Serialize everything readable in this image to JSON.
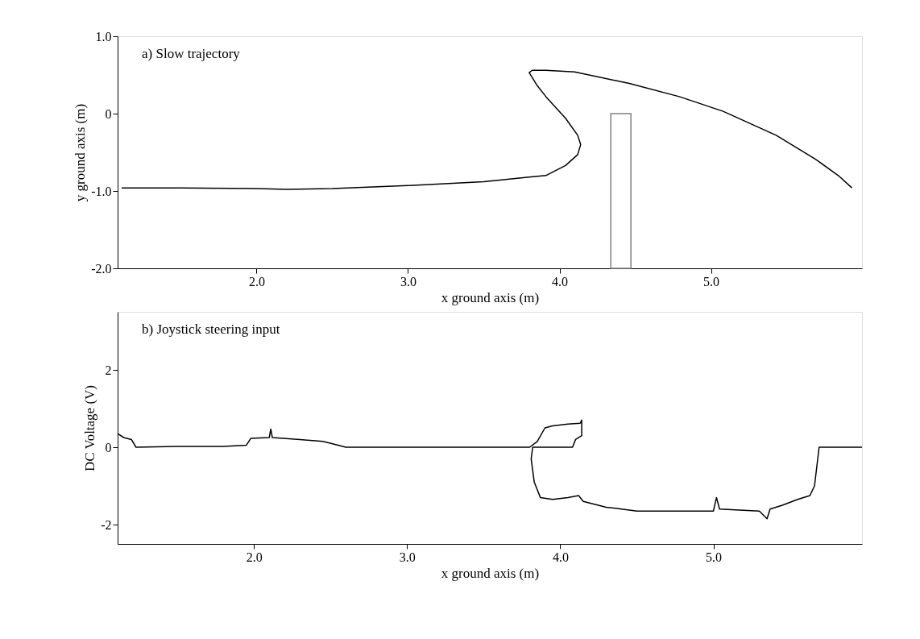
{
  "chart_data": [
    {
      "type": "line",
      "xlabel": "x ground axis (m)",
      "ylabel": "y ground axis (m)",
      "annotations": [
        "a) Slow trajectory"
      ],
      "xlim": [
        1.11,
        5.97
      ],
      "xticks": [
        {
          "value": 2,
          "label": "2.0"
        },
        {
          "value": 3,
          "label": "3.0"
        },
        {
          "value": 4,
          "label": "4.0"
        },
        {
          "value": 5,
          "label": "5.0"
        }
      ],
      "ylim": [
        -2.0,
        1.0
      ],
      "yticks": [
        {
          "value": 1,
          "label": "1.0"
        },
        0,
        {
          "value": -1,
          "label": "-1.0"
        },
        {
          "value": -2,
          "label": "-2.0"
        }
      ],
      "grid": false,
      "legend": false,
      "line_style": "solid",
      "series": [
        {
          "color": "#000000",
          "x": [
            1.11,
            1.5,
            2.0,
            2.2,
            2.5,
            3.0,
            3.5,
            3.8,
            3.91,
            4.04,
            4.12,
            4.14,
            4.12,
            4.04,
            3.91,
            3.85,
            3.8,
            3.82,
            3.91,
            4.1,
            4.46,
            4.79,
            5.08,
            5.43,
            5.69,
            5.84,
            5.93
          ],
          "values": [
            -0.96,
            -0.96,
            -0.97,
            -0.98,
            -0.97,
            -0.93,
            -0.88,
            -0.82,
            -0.8,
            -0.67,
            -0.53,
            -0.4,
            -0.28,
            -0.06,
            0.22,
            0.37,
            0.53,
            0.56,
            0.56,
            0.54,
            0.39,
            0.22,
            0.03,
            -0.28,
            -0.59,
            -0.8,
            -0.96
          ]
        },
        {
          "type": "bar",
          "color": "#808080",
          "x": [
            4.405
          ],
          "base": [
            -2.0
          ],
          "values": [
            2.0
          ]
        }
      ]
    },
    {
      "type": "line",
      "xlabel": "x ground axis (m)",
      "ylabel": "DC Voltage (V)",
      "annotations": [
        "b) Joystick steering input"
      ],
      "xlim": [
        1.11,
        5.97
      ],
      "xticks": [
        {
          "value": 2,
          "label": "2.0"
        },
        {
          "value": 3,
          "label": "3.0"
        },
        {
          "value": 4,
          "label": "4.0"
        },
        {
          "value": 5,
          "label": "5.0"
        }
      ],
      "ylim": [
        -2.5,
        3.5
      ],
      "yticks": [
        -2,
        0,
        2
      ],
      "grid": false,
      "legend": false,
      "line_style": "solid",
      "series": [
        {
          "color": "#000000",
          "x": [
            1.11,
            1.15,
            1.2,
            1.23,
            1.5,
            1.8,
            1.95,
            1.98,
            2.1,
            2.11,
            2.12,
            2.3,
            2.45,
            2.55,
            2.6,
            3.8,
            3.85,
            3.9,
            3.95,
            4.05,
            4.13,
            4.14,
            4.14,
            4.1,
            4.08,
            3.95,
            3.82,
            3.81,
            3.82,
            3.83,
            3.85,
            3.87,
            3.95,
            4.05,
            4.12,
            4.15,
            4.3,
            4.5,
            4.8,
            5.0,
            5.02,
            5.04,
            5.3,
            5.35,
            5.37,
            5.45,
            5.55,
            5.63,
            5.66,
            5.69,
            5.97
          ],
          "values": [
            0.35,
            0.25,
            0.2,
            0.0,
            0.02,
            0.02,
            0.05,
            0.23,
            0.25,
            0.47,
            0.25,
            0.2,
            0.15,
            0.05,
            0.0,
            0.0,
            0.15,
            0.5,
            0.55,
            0.6,
            0.62,
            0.7,
            0.3,
            0.2,
            0.0,
            0.0,
            0.0,
            -0.3,
            -0.6,
            -0.9,
            -1.1,
            -1.3,
            -1.35,
            -1.3,
            -1.25,
            -1.4,
            -1.55,
            -1.65,
            -1.65,
            -1.65,
            -1.3,
            -1.6,
            -1.65,
            -1.85,
            -1.6,
            -1.5,
            -1.35,
            -1.25,
            -1.0,
            0.0,
            0.0
          ]
        }
      ]
    }
  ]
}
